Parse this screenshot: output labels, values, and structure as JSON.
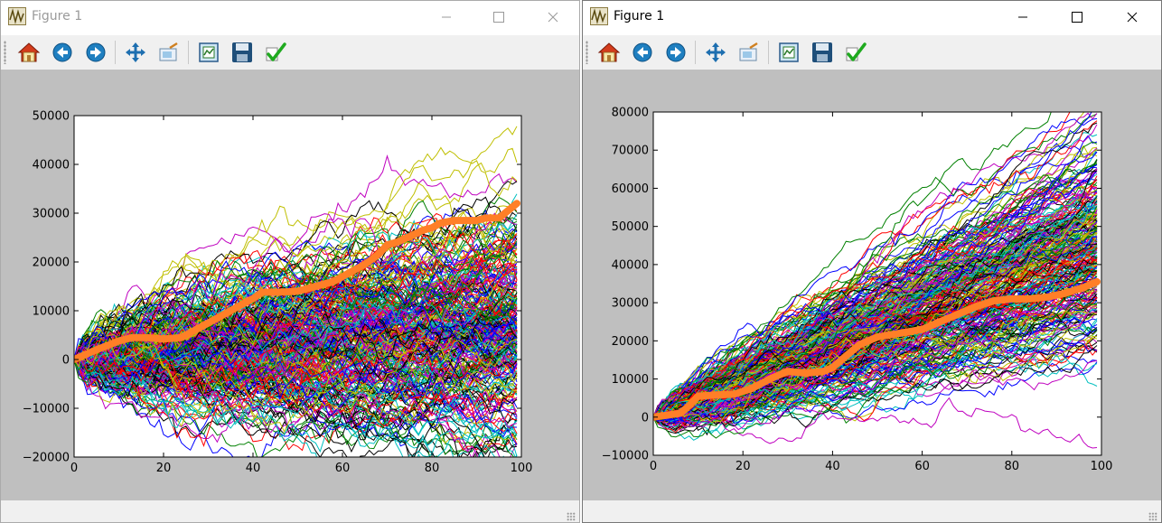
{
  "windows": [
    {
      "title": "Figure 1",
      "icons": {
        "app": "figure-app-icon",
        "minimize": "minimize-icon",
        "maximize": "maximize-icon",
        "close": "close-icon"
      },
      "toolbar": [
        "home-icon",
        "back-icon",
        "forward-icon",
        "pan-icon",
        "zoom-icon",
        "subplots-icon",
        "save-icon",
        "edit-axes-icon"
      ]
    },
    {
      "title": "Figure 1",
      "icons": {
        "app": "figure-app-icon",
        "minimize": "minimize-icon",
        "maximize": "maximize-icon",
        "close": "close-icon"
      },
      "toolbar": [
        "home-icon",
        "back-icon",
        "forward-icon",
        "pan-icon",
        "zoom-icon",
        "subplots-icon",
        "save-icon",
        "edit-axes-icon"
      ]
    }
  ],
  "colors": {
    "figure_bg": "#bfbfbf",
    "mean_line": "#ff7f27",
    "series_palette": [
      "#0000ff",
      "#008000",
      "#ff0000",
      "#00bfbf",
      "#bf00bf",
      "#bfbf00",
      "#000000"
    ]
  },
  "chart_data": [
    {
      "type": "line",
      "title": "",
      "xlabel": "",
      "ylabel": "",
      "xlim": [
        0,
        100
      ],
      "ylim": [
        -20000,
        50000
      ],
      "xticks": [
        0,
        20,
        40,
        60,
        80,
        100
      ],
      "yticks": [
        -20000,
        -10000,
        0,
        10000,
        20000,
        30000,
        40000,
        50000
      ],
      "xtick_labels": [
        "0",
        "20",
        "40",
        "60",
        "80",
        "100"
      ],
      "ytick_labels": [
        "−20000",
        "−10000",
        "0",
        "10000",
        "20000",
        "30000",
        "40000",
        "50000"
      ],
      "grid": false,
      "random_walks": {
        "count": 300,
        "steps": 100,
        "start": 0,
        "drift_per_step": 70,
        "step_sd": 1300,
        "color_cycle": [
          "#0000ff",
          "#008000",
          "#ff0000",
          "#00bfbf",
          "#bf00bf",
          "#bfbf00",
          "#000000"
        ]
      },
      "series": [
        {
          "color": "#ff7f27",
          "x": [
            0,
            5,
            10,
            13,
            16,
            20,
            24,
            28,
            32,
            36,
            40,
            42,
            46,
            50,
            54,
            58,
            62,
            65,
            68,
            70,
            72,
            75,
            78,
            80,
            82,
            85,
            88,
            90,
            92,
            95,
            97,
            99
          ],
          "values": [
            0,
            2000,
            3800,
            4500,
            4500,
            4200,
            4500,
            6500,
            8500,
            10500,
            12500,
            13800,
            13800,
            14000,
            15000,
            16000,
            18000,
            19500,
            21500,
            23500,
            24000,
            25200,
            26500,
            27000,
            28000,
            28500,
            28500,
            28500,
            29000,
            29000,
            30500,
            32000
          ]
        }
      ]
    },
    {
      "type": "line",
      "title": "",
      "xlabel": "",
      "ylabel": "",
      "xlim": [
        0,
        100
      ],
      "ylim": [
        -10000,
        80000
      ],
      "xticks": [
        0,
        20,
        40,
        60,
        80,
        100
      ],
      "yticks": [
        -10000,
        0,
        10000,
        20000,
        30000,
        40000,
        50000,
        60000,
        70000,
        80000
      ],
      "xtick_labels": [
        "0",
        "20",
        "40",
        "60",
        "80",
        "100"
      ],
      "ytick_labels": [
        "−10000",
        "0",
        "10000",
        "20000",
        "30000",
        "40000",
        "50000",
        "60000",
        "70000",
        "80000"
      ],
      "grid": false,
      "random_walks": {
        "count": 300,
        "steps": 100,
        "start": 0,
        "drift_per_step": 450,
        "step_sd": 1000,
        "color_cycle": [
          "#0000ff",
          "#008000",
          "#ff0000",
          "#00bfbf",
          "#bf00bf",
          "#bfbf00",
          "#000000"
        ]
      },
      "series": [
        {
          "color": "#ff7f27",
          "x": [
            0,
            3,
            6,
            8,
            10,
            14,
            18,
            22,
            26,
            30,
            34,
            38,
            40,
            43,
            46,
            50,
            55,
            60,
            64,
            68,
            72,
            76,
            80,
            84,
            88,
            92,
            96,
            99
          ],
          "values": [
            0,
            500,
            1000,
            3000,
            5500,
            5800,
            6000,
            7500,
            10000,
            12000,
            11500,
            12000,
            13000,
            16000,
            19000,
            21000,
            22000,
            23000,
            25000,
            27000,
            29000,
            30500,
            31000,
            31000,
            31500,
            32500,
            34000,
            35500
          ]
        }
      ]
    }
  ]
}
